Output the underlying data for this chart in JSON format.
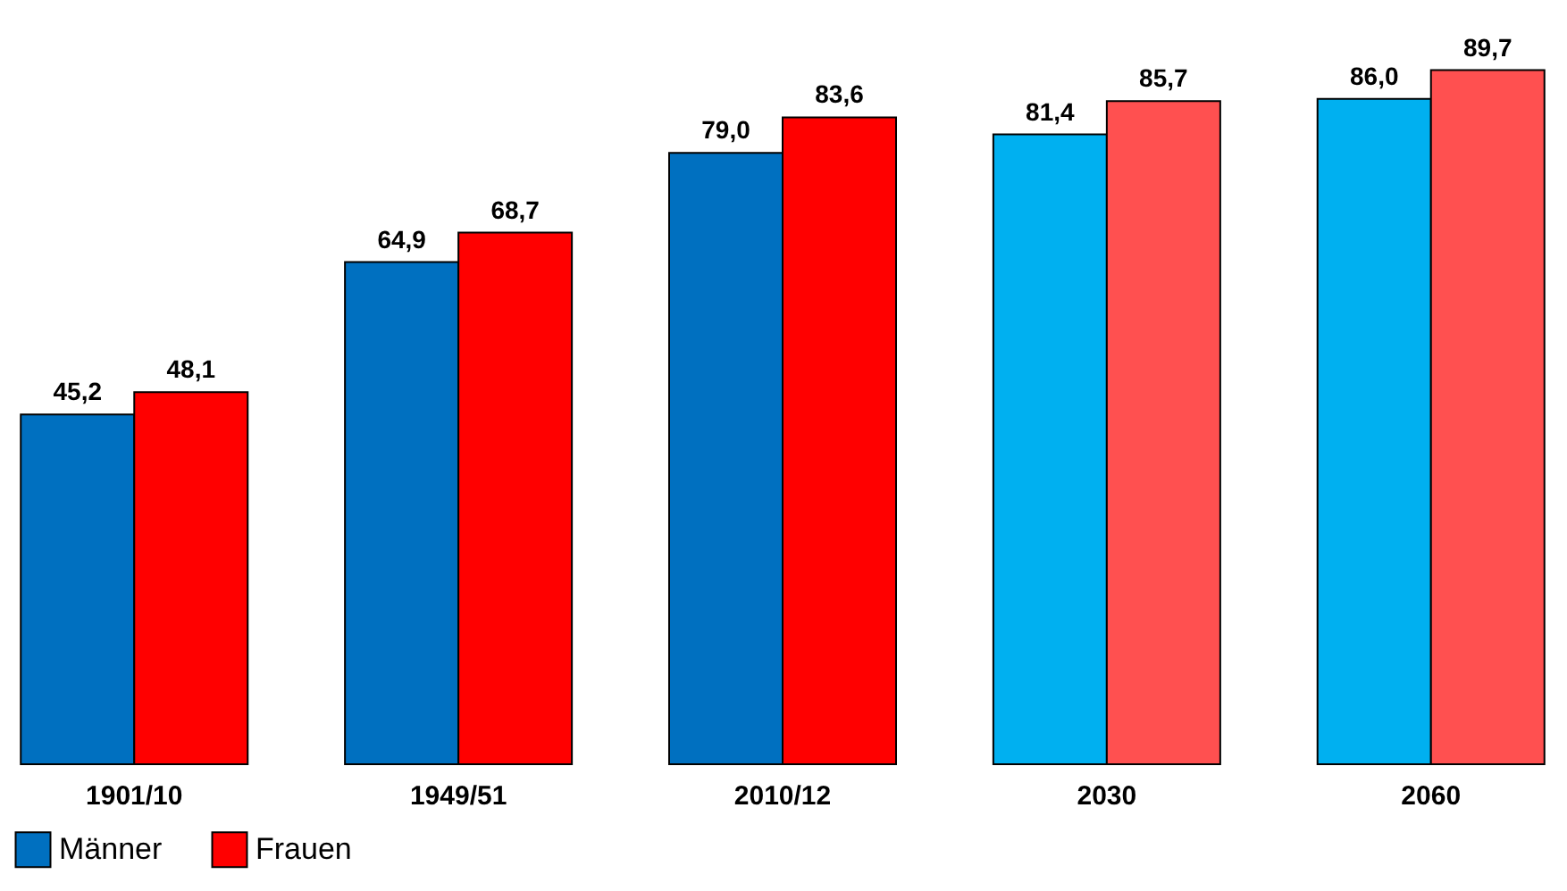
{
  "chart_data": {
    "type": "bar",
    "categories": [
      "1901/10",
      "1949/51",
      "2010/12",
      "2030",
      "2060"
    ],
    "series": [
      {
        "name": "Männer",
        "color": "#0070c0",
        "colors": [
          "#0070c0",
          "#0070c0",
          "#0070c0",
          "#00b0f0",
          "#00b0f0"
        ],
        "values": [
          45.2,
          64.9,
          79.0,
          81.4,
          86.0
        ],
        "value_labels": [
          "45,2",
          "64,9",
          "79,0",
          "81,4",
          "86,0"
        ]
      },
      {
        "name": "Frauen",
        "color": "#ff0000",
        "colors": [
          "#ff0000",
          "#ff0000",
          "#ff0000",
          "#ff5050",
          "#ff5050"
        ],
        "values": [
          48.1,
          68.7,
          83.6,
          85.7,
          89.7
        ],
        "value_labels": [
          "48,1",
          "68,7",
          "83,6",
          "85,7",
          "89,7"
        ]
      }
    ],
    "legend": "bottom",
    "grid": false
  }
}
